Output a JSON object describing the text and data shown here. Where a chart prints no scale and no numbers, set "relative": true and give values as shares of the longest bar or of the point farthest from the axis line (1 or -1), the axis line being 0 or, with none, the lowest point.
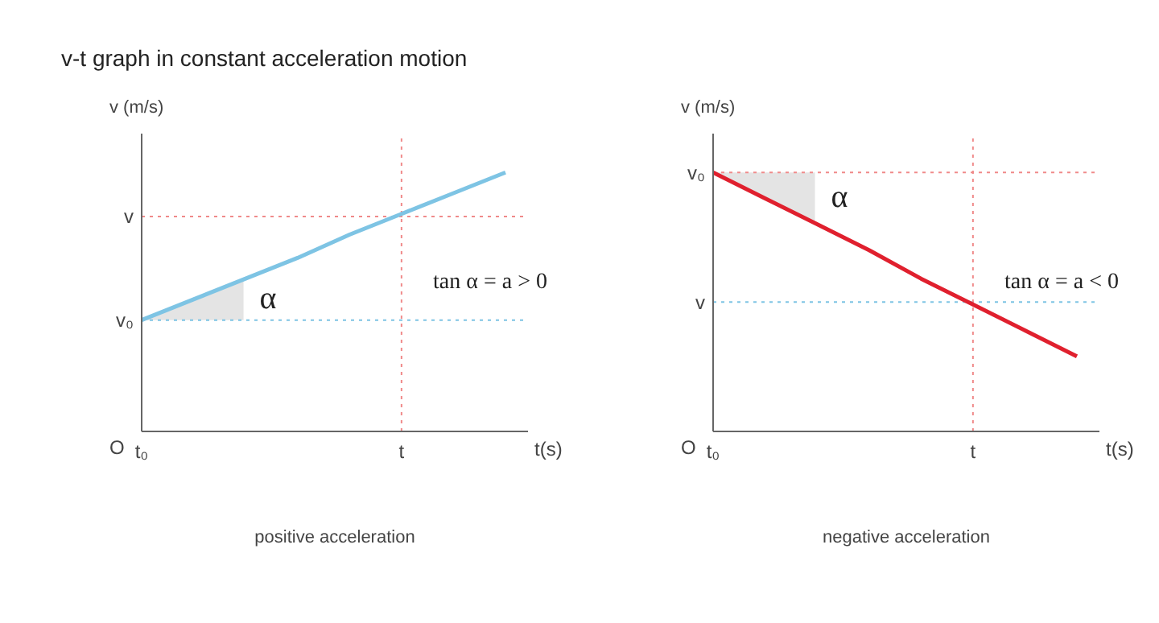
{
  "chart_data": [
    {
      "type": "line",
      "title": "v-t graph in constant acceleration motion",
      "xlabel": "t(s)",
      "ylabel": "v (m/s)",
      "relative": true,
      "categories": [
        "t₀",
        null,
        null,
        null,
        null,
        "t",
        null,
        null
      ],
      "series": [
        {
          "color": "#7ec4e4",
          "values": [
            0.43,
            0.51,
            0.59,
            0.67,
            0.76,
            0.84,
            0.92,
            1
          ]
        }
      ],
      "marker": "none",
      "ref_lines": [
        {
          "axis": "y",
          "value": 0.43,
          "label": "v₀",
          "color": "#7ec4e4",
          "line_style": "dotted"
        },
        {
          "axis": "y",
          "value": 0.83,
          "label": "v",
          "color": "#f08a8a",
          "line_style": "dotted"
        },
        {
          "axis": "x",
          "value": "t",
          "color": "#f08a8a",
          "line_style": "dotted"
        }
      ],
      "annotations": [
        "α",
        "tan α = a > 0",
        "O",
        "positive acceleration"
      ]
    },
    {
      "type": "line",
      "xlabel": "t(s)",
      "ylabel": "v (m/s)",
      "relative": true,
      "categories": [
        "t₀",
        null,
        null,
        null,
        null,
        "t",
        null,
        null
      ],
      "series": [
        {
          "color": "#e0202e",
          "values": [
            1,
            0.9,
            0.8,
            0.7,
            0.59,
            0.49,
            0.39,
            0.29
          ]
        }
      ],
      "marker": "none",
      "ref_lines": [
        {
          "axis": "y",
          "value": 1,
          "label": "v₀",
          "color": "#f08a8a",
          "line_style": "dotted"
        },
        {
          "axis": "y",
          "value": 0.5,
          "label": "v",
          "color": "#7ec4e4",
          "line_style": "dotted"
        },
        {
          "axis": "x",
          "value": "t",
          "color": "#f08a8a",
          "line_style": "dotted"
        }
      ],
      "annotations": [
        "α",
        "tan α = a < 0",
        "O",
        "negative acceleration"
      ]
    }
  ]
}
